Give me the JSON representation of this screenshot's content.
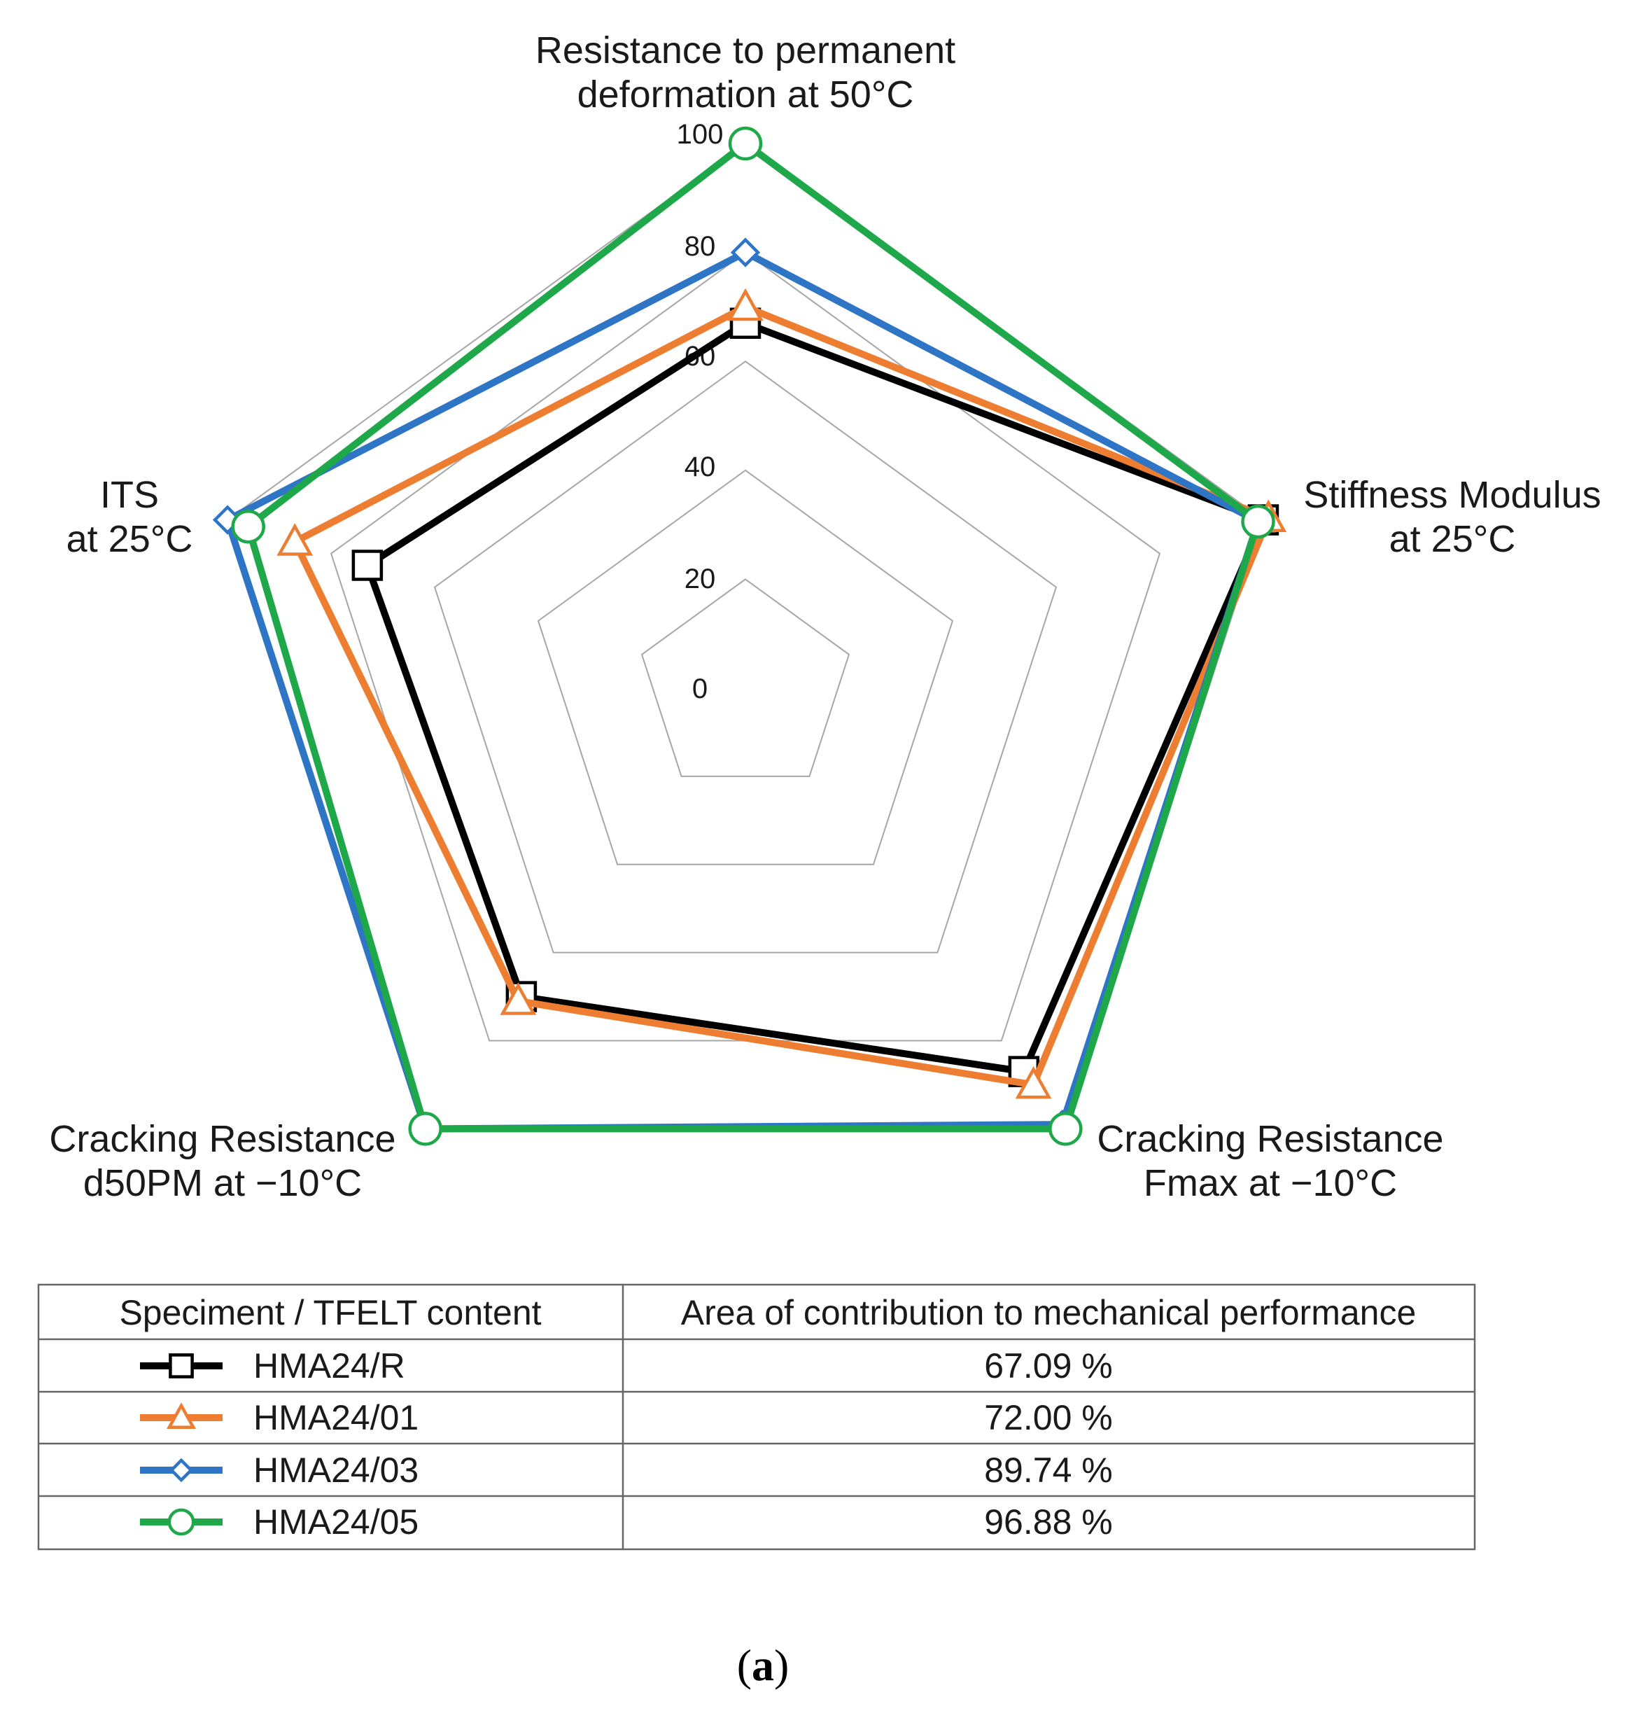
{
  "chart_data": {
    "type": "radar",
    "axes": [
      [
        "Resistance to permanent",
        "deformation at 50°C"
      ],
      [
        "Stiffness Modulus",
        "at 25°C"
      ],
      [
        "Cracking Resistance",
        "Fmax at −10°C"
      ],
      [
        "Cracking Resistance",
        "d50PM at −10°C"
      ],
      [
        "ITS",
        "at 25°C"
      ]
    ],
    "rticks": [
      0,
      20,
      40,
      60,
      80,
      100
    ],
    "rlim": [
      0,
      100
    ],
    "series": [
      {
        "name": "HMA24/R",
        "color": "#000000",
        "marker": "square",
        "values": [
          67,
          100,
          87,
          70,
          73
        ]
      },
      {
        "name": "HMA24/01",
        "color": "#ED7D31",
        "marker": "triangle",
        "values": [
          70,
          101,
          90,
          71,
          87
        ]
      },
      {
        "name": "HMA24/03",
        "color": "#2E75C6",
        "marker": "diamond",
        "values": [
          80,
          99,
          99,
          100,
          100
        ]
      },
      {
        "name": "HMA24/05",
        "color": "#1FA84A",
        "marker": "circle",
        "values": [
          100,
          99,
          100,
          100,
          96
        ]
      }
    ]
  },
  "table": {
    "headers": [
      "Speciment / TFELT content",
      "Area of contribution to mechanical performance"
    ],
    "rows": [
      {
        "label": "HMA24/R",
        "value": "67.09 %"
      },
      {
        "label": "HMA24/01",
        "value": "72.00 %"
      },
      {
        "label": "HMA24/03",
        "value": "89.74 %"
      },
      {
        "label": "HMA24/05",
        "value": "96.88 %"
      }
    ]
  },
  "caption": {
    "open": "(",
    "letter": "a",
    "close": ")"
  }
}
